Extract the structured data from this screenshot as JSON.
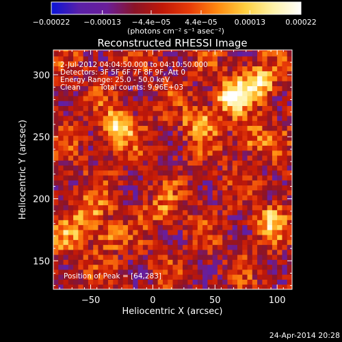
{
  "chart_data": {
    "type": "heatmap",
    "title": "Reconstructed RHESSI Image",
    "xlabel": "Heliocentric X (arcsec)",
    "ylabel": "Heliocentric Y (arcsec)",
    "xlim": [
      -80,
      112
    ],
    "ylim": [
      127,
      320
    ],
    "xticks": [
      {
        "value": -50,
        "label": "−50"
      },
      {
        "value": 0,
        "label": "0"
      },
      {
        "value": 50,
        "label": "50"
      },
      {
        "value": 100,
        "label": "100"
      }
    ],
    "yticks": [
      {
        "value": 150,
        "label": "150"
      },
      {
        "value": 200,
        "label": "200"
      },
      {
        "value": 250,
        "label": "250"
      },
      {
        "value": 300,
        "label": "300"
      }
    ],
    "colorbar": {
      "range": [
        -0.00022,
        0.00022
      ],
      "ticks": [
        {
          "value": -0.00022,
          "label": "−0.00022"
        },
        {
          "value": -0.00013,
          "label": "−0.00013"
        },
        {
          "value": -4.4e-05,
          "label": "−4.4e−05"
        },
        {
          "value": 4.4e-05,
          "label": "4.4e−05"
        },
        {
          "value": 0.00013,
          "label": "0.00013"
        },
        {
          "value": 0.00022,
          "label": "0.00022"
        }
      ],
      "units_label": "(photons cm⁻² s⁻¹ asec⁻²)",
      "colors": [
        "#0a14d8",
        "#5a20a8",
        "#6a1e9a",
        "#8a1428",
        "#c01808",
        "#e83c08",
        "#ff8a10",
        "#ffd040",
        "#fff2a8",
        "#ffffff"
      ]
    },
    "annotations": [
      "2-Jul-2012 04:04:50.000 to 04:10:50.000",
      "Detectors: 3F 5F 6F 7F 8F 9F, Att 0",
      "Energy Range: 25.0 - 50.0 keV",
      "Clean",
      "Total counts: 9.96E+03"
    ],
    "peak_label": "Position of Peak = [64,283]",
    "peak": {
      "x": 64,
      "y": 283
    },
    "sources": [
      {
        "x": 64,
        "y": 283,
        "peak": 1.0
      },
      {
        "x": 85,
        "y": 293,
        "peak": 0.85
      },
      {
        "x": -28,
        "y": 258,
        "peak": 0.9
      },
      {
        "x": 38,
        "y": 262,
        "peak": 0.55
      },
      {
        "x": 80,
        "y": 250,
        "peak": 0.45
      },
      {
        "x": 95,
        "y": 182,
        "peak": 0.6
      },
      {
        "x": -52,
        "y": 190,
        "peak": 0.5
      },
      {
        "x": -38,
        "y": 170,
        "peak": 0.45
      },
      {
        "x": 10,
        "y": 190,
        "peak": 0.4
      },
      {
        "x": -70,
        "y": 170,
        "peak": 0.4
      }
    ],
    "datetime_stamp": "24-Apr-2014 20:28"
  }
}
